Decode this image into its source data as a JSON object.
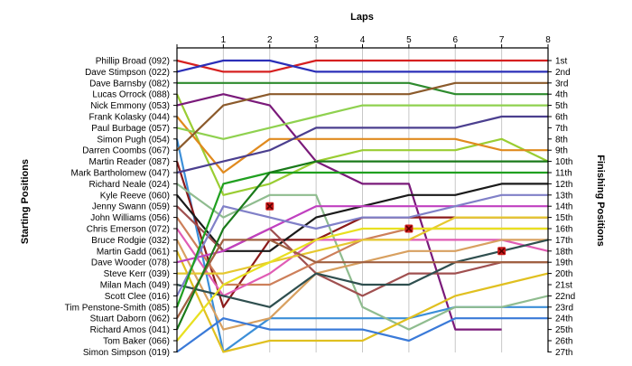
{
  "chart_data": {
    "type": "line",
    "title": "Laps",
    "ylabel": "Starting Positions",
    "y2label": "Finishing Positions",
    "x": [
      0,
      1,
      2,
      3,
      4,
      5,
      6,
      7,
      8
    ],
    "x_tick_labels": [
      "1",
      "2",
      "3",
      "4",
      "5",
      "6",
      "7",
      "8"
    ],
    "ylim": [
      1,
      27
    ],
    "y_inverted": true,
    "grid": "vertical",
    "start_labels": [
      "Phillip Broad (092)",
      "Dave Stimpson (022)",
      "Dave Barnsby (082)",
      "Lucas Orrock (088)",
      "Nick Emmony (053)",
      "Frank Kolasky (044)",
      "Paul Burbage (057)",
      "Simon Pugh (054)",
      "Darren Coombs (067)",
      "Martin Reader (087)",
      "Mark Bartholomew (047)",
      "Richard Neale (024)",
      "Kyle Reeve (060)",
      "Jenny Swann (059)",
      "John Williams (056)",
      "Chris Emerson (072)",
      "Bruce Rodgie (032)",
      "Martin Gadd (061)",
      "Dave Wooder (078)",
      "Steve Kerr (039)",
      "Milan Mach (049)",
      "Scott Clee (016)",
      "Tim Penstone-Smith (085)",
      "Stuart Daborn (062)",
      "Richard Amos (041)",
      "Tom Baker (066)",
      "Simon Simpson (019)"
    ],
    "finish_labels": [
      "1st",
      "2nd",
      "3rd",
      "4th",
      "5th",
      "6th",
      "7th",
      "8th",
      "9th",
      "10th",
      "11th",
      "12th",
      "13th",
      "14th",
      "15th",
      "16th",
      "17th",
      "18th",
      "19th",
      "20th",
      "21st",
      "22nd",
      "23rd",
      "24th",
      "25th",
      "26th",
      "27th"
    ],
    "series": [
      {
        "color": "#d62020",
        "values": [
          1,
          2,
          2,
          1,
          1,
          1,
          1,
          1,
          1
        ]
      },
      {
        "color": "#2b2fb8",
        "values": [
          2,
          1,
          1,
          2,
          2,
          2,
          2,
          2,
          2
        ]
      },
      {
        "color": "#2e8b2e",
        "values": [
          3,
          3,
          3,
          3,
          3,
          3,
          4,
          4,
          4
        ]
      },
      {
        "color": "#9acd32",
        "values": [
          4,
          13,
          12,
          10,
          9,
          9,
          9,
          8,
          10
        ]
      },
      {
        "color": "#7a1a7a",
        "values": [
          5,
          4,
          5,
          10,
          12,
          12,
          25,
          25,
          null
        ]
      },
      {
        "color": "#e08a1e",
        "values": [
          6,
          11,
          8,
          8,
          8,
          8,
          8,
          9,
          9
        ]
      },
      {
        "color": "#8fd14f",
        "values": [
          7,
          8,
          7,
          6,
          5,
          5,
          5,
          5,
          5
        ]
      },
      {
        "color": "#3c8fd8",
        "values": [
          8,
          27,
          24,
          24,
          24,
          24,
          23,
          23,
          23
        ]
      },
      {
        "color": "#8b5a2b",
        "values": [
          9,
          5,
          4,
          4,
          4,
          4,
          3,
          3,
          3
        ]
      },
      {
        "color": "#8b1a1a",
        "values": [
          10,
          23,
          17,
          17,
          15,
          15,
          15,
          15,
          15
        ]
      },
      {
        "color": "#4b3f8f",
        "values": [
          11,
          10,
          9,
          7,
          7,
          7,
          7,
          6,
          6
        ]
      },
      {
        "color": "#8fbc8f",
        "values": [
          12,
          15,
          13,
          13,
          23,
          25,
          23,
          23,
          22
        ]
      },
      {
        "color": "#1a1a1a",
        "values": [
          13,
          18,
          18,
          15,
          14,
          13,
          13,
          12,
          12
        ]
      },
      {
        "color": "#a05050",
        "values": [
          14,
          18,
          16,
          20,
          22,
          20,
          20,
          19,
          19
        ]
      },
      {
        "color": "#cd7f5a",
        "values": [
          15,
          21,
          21,
          19,
          17,
          16,
          16,
          16,
          16
        ]
      },
      {
        "color": "#e05cb4",
        "values": [
          16,
          22,
          20,
          17,
          17,
          17,
          17,
          17,
          18
        ]
      },
      {
        "color": "#d8a060",
        "values": [
          17,
          25,
          24,
          20,
          19,
          18,
          18,
          17,
          17
        ]
      },
      {
        "color": "#e0c020",
        "values": [
          18,
          27,
          26,
          26,
          26,
          24,
          22,
          21,
          20
        ]
      },
      {
        "color": "#c040c0",
        "values": [
          19,
          18,
          16,
          14,
          14,
          14,
          14,
          14,
          14
        ]
      },
      {
        "color": "#e6c830",
        "values": [
          20,
          20,
          19,
          18,
          17,
          17,
          15,
          15,
          15
        ]
      },
      {
        "color": "#2f4f4f",
        "values": [
          21,
          22,
          23,
          20,
          21,
          21,
          19,
          18,
          17
        ]
      },
      {
        "color": "#8080c8",
        "values": [
          22,
          14,
          15,
          16,
          15,
          15,
          14,
          13,
          13
        ]
      },
      {
        "color": "#20a020",
        "values": [
          23,
          12,
          11,
          11,
          11,
          11,
          11,
          11,
          11
        ]
      },
      {
        "color": "#a06040",
        "values": [
          24,
          17,
          17,
          19,
          19,
          19,
          19,
          19,
          19
        ]
      },
      {
        "color": "#1a7a1a",
        "values": [
          25,
          16,
          11,
          10,
          10,
          10,
          10,
          10,
          10
        ]
      },
      {
        "color": "#e8e020",
        "values": [
          26,
          21,
          19,
          17,
          16,
          16,
          16,
          16,
          16
        ]
      },
      {
        "color": "#3a7ad8",
        "values": [
          27,
          24,
          25,
          25,
          25,
          26,
          24,
          24,
          24
        ]
      }
    ],
    "markers": [
      {
        "x": 2,
        "y": 14,
        "color": "#cc1a1a"
      },
      {
        "x": 5,
        "y": 16,
        "color": "#cc1a1a"
      },
      {
        "x": 7,
        "y": 18,
        "color": "#cc1a1a"
      }
    ]
  }
}
